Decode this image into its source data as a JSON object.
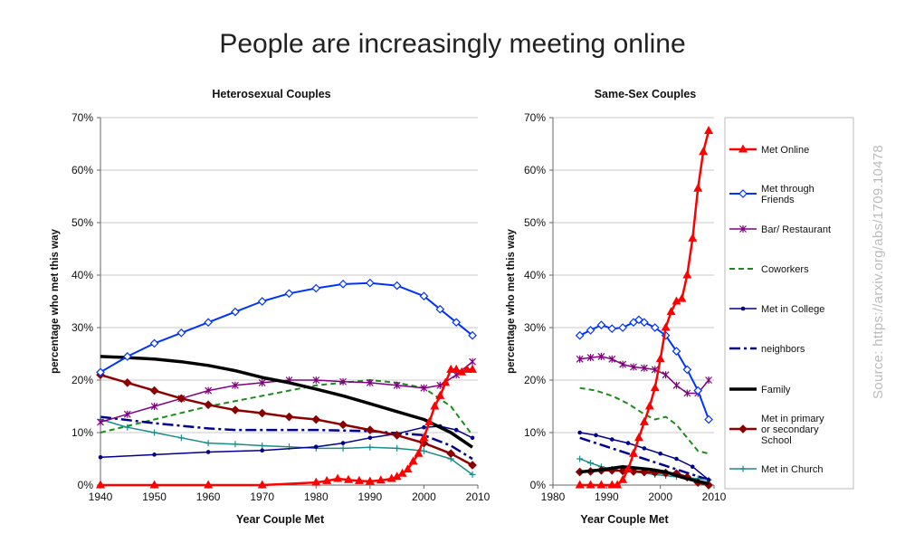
{
  "title": "People are increasingly meeting online",
  "source": "Source: https://arxiv.org/abs/1709.10478",
  "chart_data": [
    {
      "type": "line",
      "title": "Heterosexual Couples",
      "xlabel": "Year Couple Met",
      "ylabel": "percentage who met this way",
      "xlim": [
        1940,
        2010
      ],
      "ylim": [
        0,
        70
      ],
      "xticks": [
        "1940",
        "1950",
        "1960",
        "1970",
        "1980",
        "1990",
        "2000",
        "2010"
      ],
      "yticks": [
        "0%",
        "10%",
        "20%",
        "30%",
        "40%",
        "50%",
        "60%",
        "70%"
      ],
      "grid": true,
      "series": [
        {
          "name": "Met Online",
          "color": "#ff0000",
          "marker": "triangle",
          "x": [
            1940,
            1950,
            1960,
            1970,
            1980,
            1982,
            1984,
            1986,
            1988,
            1990,
            1992,
            1994,
            1995,
            1996,
            1997,
            1998,
            1999,
            2000,
            2001,
            2002,
            2003,
            2004,
            2005,
            2006,
            2007,
            2008,
            2009
          ],
          "y": [
            0,
            0,
            0,
            0,
            0.5,
            0.8,
            1.2,
            1.0,
            0.8,
            0.7,
            0.9,
            1.2,
            1.6,
            2.2,
            3,
            4.5,
            6,
            9,
            12,
            15,
            17,
            19.5,
            22,
            22,
            21.5,
            22,
            22
          ]
        },
        {
          "name": "Met through Friends",
          "color": "#0033ff",
          "marker": "diamond",
          "x": [
            1940,
            1945,
            1950,
            1955,
            1960,
            1965,
            1970,
            1975,
            1980,
            1985,
            1990,
            1995,
            2000,
            2003,
            2006,
            2009
          ],
          "y": [
            21.5,
            24.5,
            27,
            29,
            31,
            33,
            35,
            36.5,
            37.5,
            38.3,
            38.5,
            38,
            36,
            33.5,
            31,
            28.5
          ]
        },
        {
          "name": "Bar/ Restaurant",
          "color": "#800080",
          "marker": "star",
          "x": [
            1940,
            1945,
            1950,
            1955,
            1960,
            1965,
            1970,
            1975,
            1980,
            1985,
            1990,
            1995,
            2000,
            2003,
            2006,
            2009
          ],
          "y": [
            12,
            13.5,
            15,
            16.5,
            18,
            19,
            19.5,
            20,
            20,
            19.7,
            19.5,
            19,
            18.5,
            19,
            21,
            23.5
          ]
        },
        {
          "name": "Coworkers",
          "color": "#1a8c1a",
          "marker": "none",
          "x": [
            1940,
            1950,
            1960,
            1970,
            1980,
            1985,
            1990,
            1995,
            2000,
            2005,
            2009
          ],
          "y": [
            10,
            12.5,
            15,
            17,
            19,
            19.5,
            20,
            19.5,
            18.5,
            15,
            9.5
          ]
        },
        {
          "name": "Met in College",
          "color": "#00008b",
          "marker": "dot",
          "x": [
            1940,
            1950,
            1960,
            1970,
            1980,
            1985,
            1990,
            1995,
            2000,
            2003,
            2006,
            2009
          ],
          "y": [
            5.3,
            5.8,
            6.3,
            6.6,
            7.3,
            8,
            9,
            9.8,
            11,
            11.2,
            10.5,
            9
          ]
        },
        {
          "name": "neighbors",
          "color": "#00008b",
          "marker": "none",
          "x": [
            1940,
            1950,
            1960,
            1965,
            1970,
            1980,
            1990,
            2000,
            2005,
            2009
          ],
          "y": [
            13,
            11.8,
            10.8,
            10.5,
            10.5,
            10.5,
            10.3,
            9.5,
            7.5,
            5
          ]
        },
        {
          "name": "Family",
          "color": "#000000",
          "marker": "none",
          "x": [
            1940,
            1945,
            1950,
            1955,
            1960,
            1965,
            1970,
            1975,
            1980,
            1985,
            1990,
            1995,
            2000,
            2005,
            2009
          ],
          "y": [
            24.5,
            24.3,
            24,
            23.5,
            22.8,
            21.8,
            20.5,
            19.5,
            18.3,
            17,
            15.5,
            14,
            12.5,
            10,
            7.2
          ]
        },
        {
          "name": "Met in primary or secondary School",
          "color": "#8b0000",
          "marker": "diamond",
          "x": [
            1940,
            1945,
            1950,
            1955,
            1960,
            1965,
            1970,
            1975,
            1980,
            1985,
            1990,
            1995,
            2000,
            2005,
            2009
          ],
          "y": [
            21,
            19.5,
            18,
            16.5,
            15.3,
            14.3,
            13.7,
            13,
            12.5,
            11.5,
            10.5,
            9.5,
            8,
            6,
            3.8
          ]
        },
        {
          "name": "Met in Church",
          "color": "#1a8c8c",
          "marker": "plus",
          "x": [
            1940,
            1945,
            1950,
            1955,
            1960,
            1965,
            1970,
            1975,
            1980,
            1985,
            1990,
            1995,
            2000,
            2005,
            2009
          ],
          "y": [
            12.5,
            11,
            10,
            9,
            8,
            7.8,
            7.5,
            7.3,
            7,
            7,
            7.2,
            7,
            6.5,
            5,
            2
          ]
        }
      ]
    },
    {
      "type": "line",
      "title": "Same-Sex Couples",
      "xlabel": "Year Couple Met",
      "ylabel": "percentage who met this way",
      "xlim": [
        1980,
        2010
      ],
      "ylim": [
        0,
        70
      ],
      "xticks": [
        "1980",
        "1990",
        "2000",
        "2010"
      ],
      "yticks": [
        "0%",
        "10%",
        "20%",
        "30%",
        "40%",
        "50%",
        "60%",
        "70%"
      ],
      "grid": true,
      "series": [
        {
          "name": "Met Online",
          "color": "#ff0000",
          "marker": "triangle",
          "x": [
            1985,
            1987,
            1989,
            1991,
            1992,
            1993,
            1994,
            1995,
            1996,
            1997,
            1998,
            1999,
            2000,
            2001,
            2002,
            2003,
            2004,
            2005,
            2006,
            2007,
            2008,
            2009
          ],
          "y": [
            0,
            0,
            0,
            0,
            0,
            1,
            3,
            6,
            9,
            12,
            15,
            18.5,
            24,
            30,
            33,
            35,
            35.5,
            40,
            47,
            56.5,
            63.5,
            67.5
          ]
        },
        {
          "name": "Met through Friends",
          "color": "#0033ff",
          "marker": "diamond",
          "x": [
            1985,
            1987,
            1989,
            1991,
            1993,
            1995,
            1996,
            1997,
            1999,
            2001,
            2003,
            2005,
            2007,
            2009
          ],
          "y": [
            28.5,
            29.5,
            30.5,
            29.8,
            30,
            31,
            31.5,
            31,
            30,
            28.5,
            25.5,
            22,
            18,
            12.5
          ]
        },
        {
          "name": "Bar/ Restaurant",
          "color": "#800080",
          "marker": "star",
          "x": [
            1985,
            1987,
            1989,
            1991,
            1993,
            1995,
            1997,
            1999,
            2001,
            2003,
            2005,
            2007,
            2009
          ],
          "y": [
            24,
            24.3,
            24.5,
            24,
            23,
            22.5,
            22.3,
            22,
            21,
            19,
            17.5,
            17.5,
            20
          ]
        },
        {
          "name": "Coworkers",
          "color": "#1a8c1a",
          "marker": "none",
          "x": [
            1985,
            1988,
            1991,
            1994,
            1997,
            1999,
            2001,
            2003,
            2005,
            2007,
            2009
          ],
          "y": [
            18.5,
            18,
            17,
            15.5,
            13.5,
            12.5,
            13,
            11.5,
            9,
            6.5,
            6
          ]
        },
        {
          "name": "Met in College",
          "color": "#00008b",
          "marker": "dot",
          "x": [
            1985,
            1988,
            1991,
            1994,
            1997,
            2000,
            2003,
            2006,
            2009
          ],
          "y": [
            10,
            9.5,
            8.7,
            8,
            7,
            6,
            5,
            3.5,
            1
          ]
        },
        {
          "name": "neighbors",
          "color": "#00008b",
          "marker": "none",
          "x": [
            1985,
            1988,
            1991,
            1994,
            1997,
            2000,
            2003,
            2006,
            2009
          ],
          "y": [
            9,
            8,
            7,
            6,
            5,
            4,
            3,
            2,
            1
          ]
        },
        {
          "name": "Family",
          "color": "#000000",
          "marker": "none",
          "x": [
            1985,
            1988,
            1991,
            1993,
            1995,
            1998,
            2001,
            2004,
            2007,
            2009
          ],
          "y": [
            2.5,
            2.8,
            3.2,
            3.5,
            3.3,
            3,
            2.5,
            1.5,
            0.7,
            0.3
          ]
        },
        {
          "name": "Met in primary or secondary School",
          "color": "#8b0000",
          "marker": "diamond",
          "x": [
            1985,
            1987,
            1989,
            1991,
            1993,
            1995,
            1997,
            1999,
            2001,
            2003,
            2005,
            2007,
            2009
          ],
          "y": [
            2.5,
            2.6,
            2.8,
            2.8,
            2.7,
            2.6,
            2.5,
            2.4,
            2.3,
            2.2,
            1.5,
            0.5,
            0
          ]
        },
        {
          "name": "Met in Church",
          "color": "#1a8c8c",
          "marker": "plus",
          "x": [
            1985,
            1987,
            1989,
            1991,
            1993,
            1995,
            1997,
            1999,
            2001,
            2003,
            2005,
            2007,
            2009
          ],
          "y": [
            5,
            4.2,
            3.5,
            3,
            2.7,
            2.5,
            2.3,
            2,
            1.8,
            1.6,
            1.4,
            1.2,
            1
          ]
        }
      ]
    }
  ],
  "legend": [
    "Met Online",
    "Met through Friends",
    "Bar/ Restaurant",
    "Coworkers",
    "Met in College",
    "neighbors",
    "Family",
    "Met in primary or secondary School",
    "Met in Church"
  ]
}
